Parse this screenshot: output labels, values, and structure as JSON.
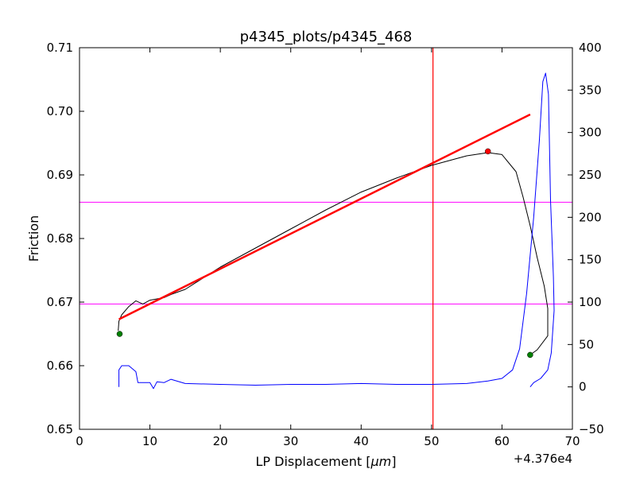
{
  "chart_data": {
    "type": "line",
    "title": "p4345_plots/p4345_468",
    "xlabel": "LP Displacement",
    "xlabel_unit": "μm",
    "ylabel": "Friction",
    "x_offset_label": "+4.376e4",
    "xlim": [
      0,
      70
    ],
    "ylim": [
      0.65,
      0.71
    ],
    "y2lim": [
      -50,
      400
    ],
    "x_ticks": [
      "0",
      "10",
      "20",
      "30",
      "40",
      "50",
      "60",
      "70"
    ],
    "y_ticks": [
      "0.65",
      "0.66",
      "0.67",
      "0.68",
      "0.69",
      "0.70",
      "0.71"
    ],
    "y2_ticks": [
      "−50",
      "0",
      "50",
      "100",
      "150",
      "200",
      "250",
      "300",
      "350",
      "400"
    ],
    "grid": false,
    "series": [
      {
        "color": "#000000",
        "axis": "left",
        "x": [
          5.5,
          5.6,
          6.0,
          7.0,
          8.0,
          9.0,
          10.0,
          11.0,
          12.0,
          13.0,
          15.0,
          20.0,
          25.0,
          30.0,
          35.0,
          40.0,
          45.0,
          50.0,
          55.0,
          58.0,
          60.0,
          62.0,
          63.0,
          64.0,
          65.0,
          66.0,
          66.5,
          66.5,
          65.0,
          64.0
        ],
        "y": [
          0.6655,
          0.667,
          0.668,
          0.6693,
          0.6702,
          0.6697,
          0.6703,
          0.6705,
          0.6707,
          0.6712,
          0.672,
          0.6755,
          0.6785,
          0.6815,
          0.6845,
          0.6873,
          0.6895,
          0.6915,
          0.693,
          0.6935,
          0.6932,
          0.6905,
          0.6865,
          0.682,
          0.677,
          0.6725,
          0.669,
          0.6647,
          0.6625,
          0.6617
        ]
      },
      {
        "color": "#0000ff",
        "axis": "right",
        "x": [
          5.6,
          5.6,
          6.0,
          7.0,
          8.0,
          8.3,
          9.0,
          10.0,
          10.5,
          11.0,
          12.0,
          13.0,
          15.0,
          20.0,
          25.0,
          30.0,
          35.0,
          40.0,
          45.0,
          50.0,
          55.0,
          58.0,
          60.0,
          61.5,
          62.5,
          63.5,
          64.5,
          65.3,
          65.8,
          66.2,
          66.6,
          66.9,
          67.3,
          67.4,
          67.0,
          66.5,
          65.5,
          64.5,
          64.0
        ],
        "y": [
          0,
          20,
          25,
          25,
          18,
          5,
          5,
          5,
          -2,
          6,
          5,
          9,
          4,
          3,
          2,
          3,
          3,
          4,
          3,
          3,
          4,
          7,
          10,
          20,
          45,
          110,
          200,
          290,
          360,
          370,
          345,
          220,
          130,
          90,
          40,
          20,
          10,
          5,
          0
        ]
      },
      {
        "color": "#ff0000",
        "axis": "left",
        "x": [
          5.6,
          64.0
        ],
        "y": [
          0.6673,
          0.6995
        ]
      }
    ],
    "points": [
      {
        "color": "#008000",
        "x": 5.7,
        "y": 0.665
      },
      {
        "color": "#008000",
        "x": 64.0,
        "y": 0.6617
      },
      {
        "color": "#ff0000",
        "x": 58.0,
        "y": 0.6937
      }
    ],
    "vlines": [
      {
        "color": "#ff0000",
        "x": 50.2
      }
    ],
    "hlines": [
      {
        "color": "#ff00ff",
        "y": 0.6857
      },
      {
        "color": "#ff00ff",
        "y": 0.6697
      }
    ]
  }
}
